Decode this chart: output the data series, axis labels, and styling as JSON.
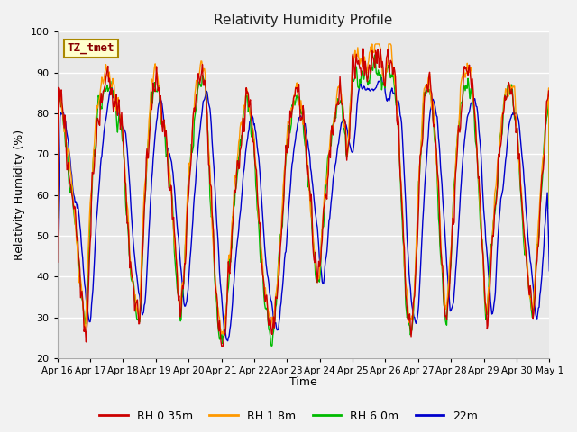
{
  "title": "Relativity Humidity Profile",
  "xlabel": "Time",
  "ylabel": "Relativity Humidity (%)",
  "ylim": [
    20,
    100
  ],
  "yticks": [
    20,
    30,
    40,
    50,
    60,
    70,
    80,
    90,
    100
  ],
  "xtick_labels": [
    "Apr 16",
    "Apr 17",
    "Apr 18",
    "Apr 19",
    "Apr 20",
    "Apr 21",
    "Apr 22",
    "Apr 23",
    "Apr 24",
    "Apr 25",
    "Apr 26",
    "Apr 27",
    "Apr 28",
    "Apr 29",
    "Apr 30",
    "May 1"
  ],
  "colors": {
    "RH 0.35m": "#cc0000",
    "RH 1.8m": "#ff9900",
    "RH 6.0m": "#00bb00",
    "22m": "#0000cc"
  },
  "figsize": [
    6.4,
    4.8
  ],
  "dpi": 100,
  "fig_bg": "#f2f2f2",
  "plot_bg": "#e8e8e8",
  "grid_color": "#ffffff",
  "annotation_text": "TZ_tmet",
  "annotation_color": "#880000",
  "annotation_bg": "#ffffcc",
  "annotation_edge": "#aa8800"
}
